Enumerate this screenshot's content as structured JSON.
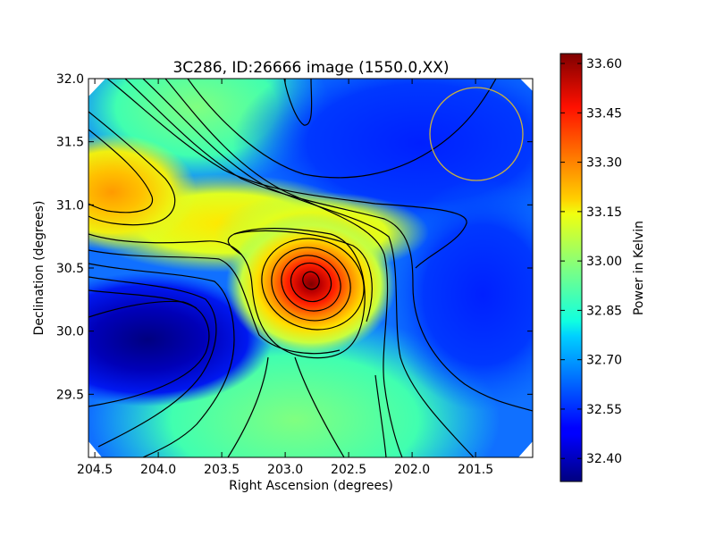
{
  "chart_data": {
    "type": "heatmap",
    "title": "3C286, ID:26666 image (1550.0,XX)",
    "xlabel": "Right Ascension (degrees)",
    "ylabel": "Declination (degrees)",
    "xlim": [
      204.55,
      201.05
    ],
    "ylim": [
      29.0,
      32.0
    ],
    "x_ticks": [
      "204.5",
      "204.0",
      "203.5",
      "203.0",
      "202.5",
      "202.0",
      "201.5"
    ],
    "y_ticks": [
      "32.0",
      "31.5",
      "31.0",
      "30.5",
      "30.0",
      "29.5"
    ],
    "colorbar": {
      "label": "Power in Kelvin",
      "range": [
        32.33,
        33.63
      ],
      "ticks": [
        "33.60",
        "33.45",
        "33.30",
        "33.15",
        "33.00",
        "32.85",
        "32.70",
        "32.55",
        "32.40"
      ]
    },
    "peak": {
      "ra": 202.77,
      "dec": 30.42,
      "value": 33.62
    },
    "beam_circle": {
      "ra": 201.5,
      "dec": 31.57,
      "color": "#c8b040"
    },
    "contour_lines": true,
    "colormap": "jet"
  }
}
